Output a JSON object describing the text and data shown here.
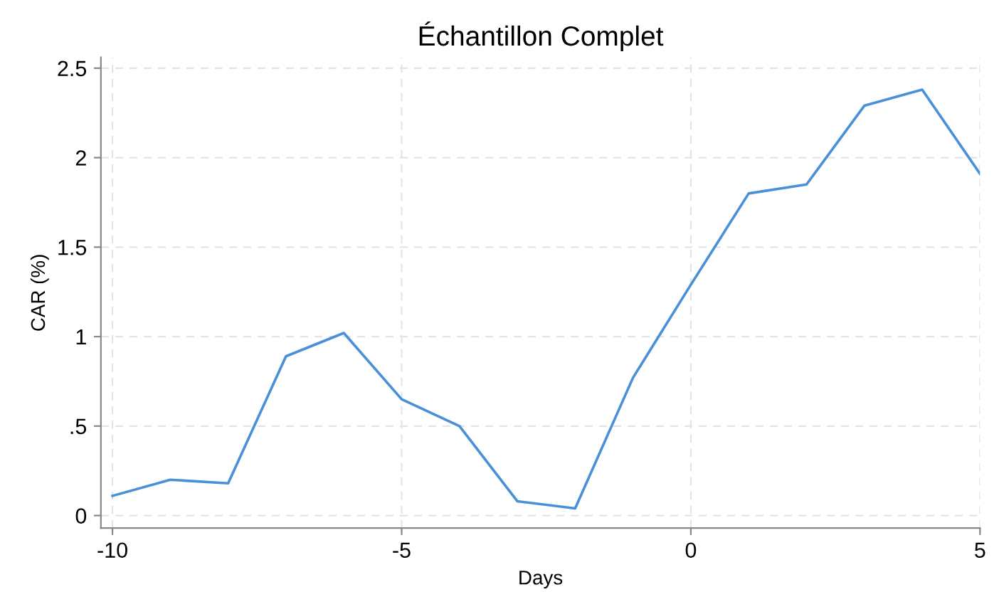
{
  "chart_data": {
    "type": "line",
    "title": "Échantillon Complet",
    "xlabel": "Days",
    "ylabel": "CAR (%)",
    "x": [
      -10,
      -9,
      -8,
      -7,
      -6,
      -5,
      -4,
      -3,
      -2,
      -1,
      0,
      1,
      2,
      3,
      4,
      5
    ],
    "series": [
      {
        "color": "#4a90d9",
        "values": [
          0.11,
          0.2,
          0.18,
          0.89,
          1.02,
          0.65,
          0.5,
          0.08,
          0.04,
          0.77,
          1.29,
          1.8,
          1.85,
          2.29,
          2.38,
          1.91
        ]
      }
    ],
    "xlim": [
      -10.2,
      5
    ],
    "ylim": [
      -0.07,
      2.56
    ],
    "xticks": [
      -10,
      -5,
      0,
      5
    ],
    "yticks": [
      0,
      {
        "value": 0.5,
        "label": ".5"
      },
      1,
      1.5,
      2,
      2.5
    ],
    "grid": true,
    "marker": "none",
    "line_style": "solid"
  }
}
